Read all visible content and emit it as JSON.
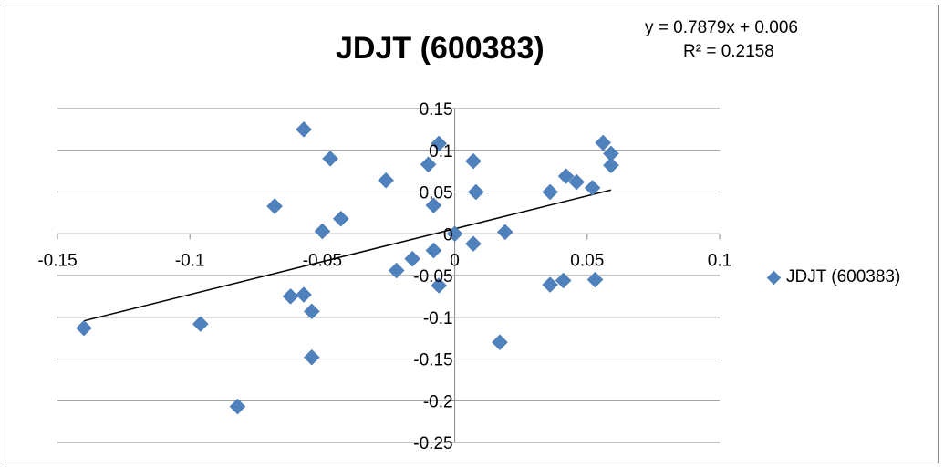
{
  "chart_data": {
    "type": "scatter",
    "title": "JDJT (600383)",
    "xlabel": "",
    "ylabel": "",
    "xlim": [
      -0.15,
      0.1
    ],
    "ylim": [
      -0.25,
      0.15
    ],
    "x_ticks": [
      "-0.15",
      "-0.1",
      "-0.05",
      "0",
      "0.05",
      "0.1"
    ],
    "y_ticks": [
      "0.15",
      "0.1",
      "0.05",
      "0",
      "-0.05",
      "-0.1",
      "-0.15",
      "-0.2",
      "-0.25"
    ],
    "grid": "horizontal",
    "legend": "right",
    "marker_color": "#4f81bd",
    "series": [
      {
        "name": "JDJT (600383)",
        "points": [
          [
            -0.14,
            -0.113
          ],
          [
            -0.096,
            -0.108
          ],
          [
            -0.082,
            -0.207
          ],
          [
            -0.068,
            0.033
          ],
          [
            -0.062,
            -0.075
          ],
          [
            -0.057,
            -0.073
          ],
          [
            -0.057,
            0.125
          ],
          [
            -0.054,
            -0.093
          ],
          [
            -0.054,
            -0.148
          ],
          [
            -0.05,
            0.003
          ],
          [
            -0.047,
            0.09
          ],
          [
            -0.043,
            0.018
          ],
          [
            -0.026,
            0.064
          ],
          [
            -0.022,
            -0.044
          ],
          [
            -0.016,
            -0.03
          ],
          [
            -0.01,
            0.083
          ],
          [
            -0.008,
            0.034
          ],
          [
            -0.008,
            -0.02
          ],
          [
            -0.006,
            0.108
          ],
          [
            -0.006,
            -0.062
          ],
          [
            0.0,
            0.0
          ],
          [
            0.007,
            0.087
          ],
          [
            0.007,
            -0.012
          ],
          [
            0.008,
            0.05
          ],
          [
            0.017,
            -0.13
          ],
          [
            0.019,
            0.002
          ],
          [
            0.036,
            0.05
          ],
          [
            0.036,
            -0.061
          ],
          [
            0.041,
            -0.056
          ],
          [
            0.042,
            0.069
          ],
          [
            0.046,
            0.062
          ],
          [
            0.052,
            0.055
          ],
          [
            0.053,
            -0.055
          ],
          [
            0.056,
            0.109
          ],
          [
            0.059,
            0.096
          ],
          [
            0.059,
            0.082
          ]
        ]
      }
    ],
    "trendline": {
      "slope": 0.7879,
      "intercept": 0.006,
      "x_range": [
        -0.14,
        0.059
      ],
      "equation": "y = 0.7879x + 0.006",
      "r_squared": "R² = 0.2158"
    }
  }
}
